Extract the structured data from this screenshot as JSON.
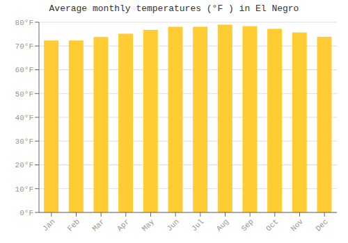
{
  "chart_data": {
    "type": "bar",
    "title": "Average monthly temperatures (°F ) in El Negro",
    "categories": [
      "Jan",
      "Feb",
      "Mar",
      "Apr",
      "May",
      "Jun",
      "Jul",
      "Aug",
      "Sep",
      "Oct",
      "Nov",
      "Dec"
    ],
    "values": [
      72.3,
      72.3,
      73.8,
      75.2,
      76.8,
      78.1,
      78.1,
      79.0,
      78.3,
      77.2,
      75.7,
      73.9
    ],
    "color": "#FFCC33",
    "ylim": [
      0,
      80
    ],
    "yticks": [
      {
        "value": 0,
        "label": "0°F"
      },
      {
        "value": 10,
        "label": "10°F"
      },
      {
        "value": 20,
        "label": "20°F"
      },
      {
        "value": 30,
        "label": "30°F"
      },
      {
        "value": 40,
        "label": "40°F"
      },
      {
        "value": 50,
        "label": "50°F"
      },
      {
        "value": 60,
        "label": "60°F"
      },
      {
        "value": 70,
        "label": "70°F"
      },
      {
        "value": 80,
        "label": "80°F"
      }
    ],
    "grid": true
  }
}
